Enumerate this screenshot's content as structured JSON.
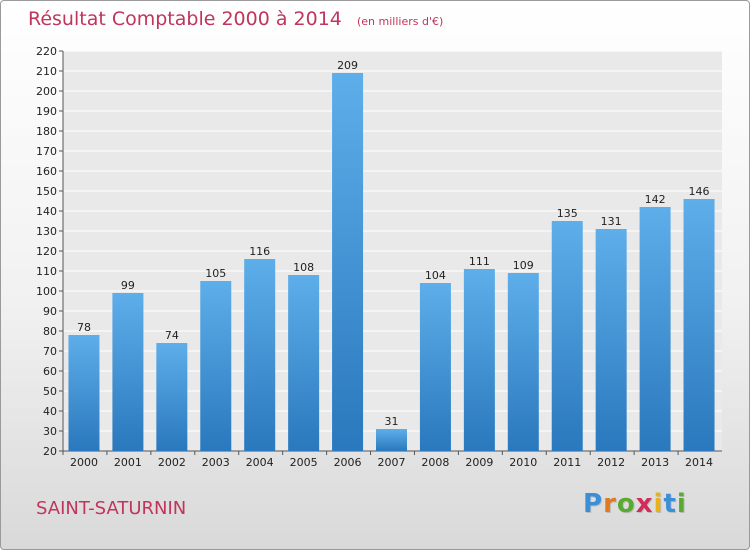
{
  "header": {
    "title": "Résultat Comptable 2000 à 2014",
    "subtitle": "(en milliers d'€)"
  },
  "footer": {
    "commune": "SAINT-SATURNIN",
    "logo_letters": [
      "P",
      "r",
      "o",
      "x",
      "i",
      "t",
      "i"
    ],
    "logo_colors": [
      "#3a8fd6",
      "#e07a1f",
      "#5aaa32",
      "#d22c5a",
      "#e8b21c",
      "#3a8fd6",
      "#5aaa32"
    ]
  },
  "colors": {
    "bar_top": "#5eaeea",
    "bar_bottom": "#2a78bd",
    "text": "#222222",
    "accent": "#c0355b",
    "grid": "#ffffff"
  },
  "chart_data": {
    "type": "bar",
    "categories": [
      "2000",
      "2001",
      "2002",
      "2003",
      "2004",
      "2005",
      "2006",
      "2007",
      "2008",
      "2009",
      "2010",
      "2011",
      "2012",
      "2013",
      "2014"
    ],
    "values": [
      78,
      99,
      74,
      105,
      116,
      108,
      209,
      31,
      104,
      111,
      109,
      135,
      131,
      142,
      146
    ],
    "data_labels": [
      "78",
      "99",
      "74",
      "105",
      "116",
      "108",
      "209",
      "31",
      "104",
      "111",
      "109",
      "135",
      "131",
      "142",
      "146"
    ],
    "title": "Résultat Comptable 2000 à 2014",
    "ylim": [
      20,
      220
    ],
    "yticks": [
      20,
      30,
      40,
      50,
      60,
      70,
      80,
      90,
      100,
      110,
      120,
      130,
      140,
      150,
      160,
      170,
      180,
      190,
      200,
      210,
      220
    ],
    "ytick_labels": [
      "20",
      "30",
      "40",
      "50",
      "60",
      "70",
      "80",
      "90",
      "100",
      "110",
      "120",
      "130",
      "140",
      "150",
      "160",
      "170",
      "180",
      "190",
      "200",
      "210",
      "220"
    ],
    "grid": true,
    "legend": "none"
  }
}
